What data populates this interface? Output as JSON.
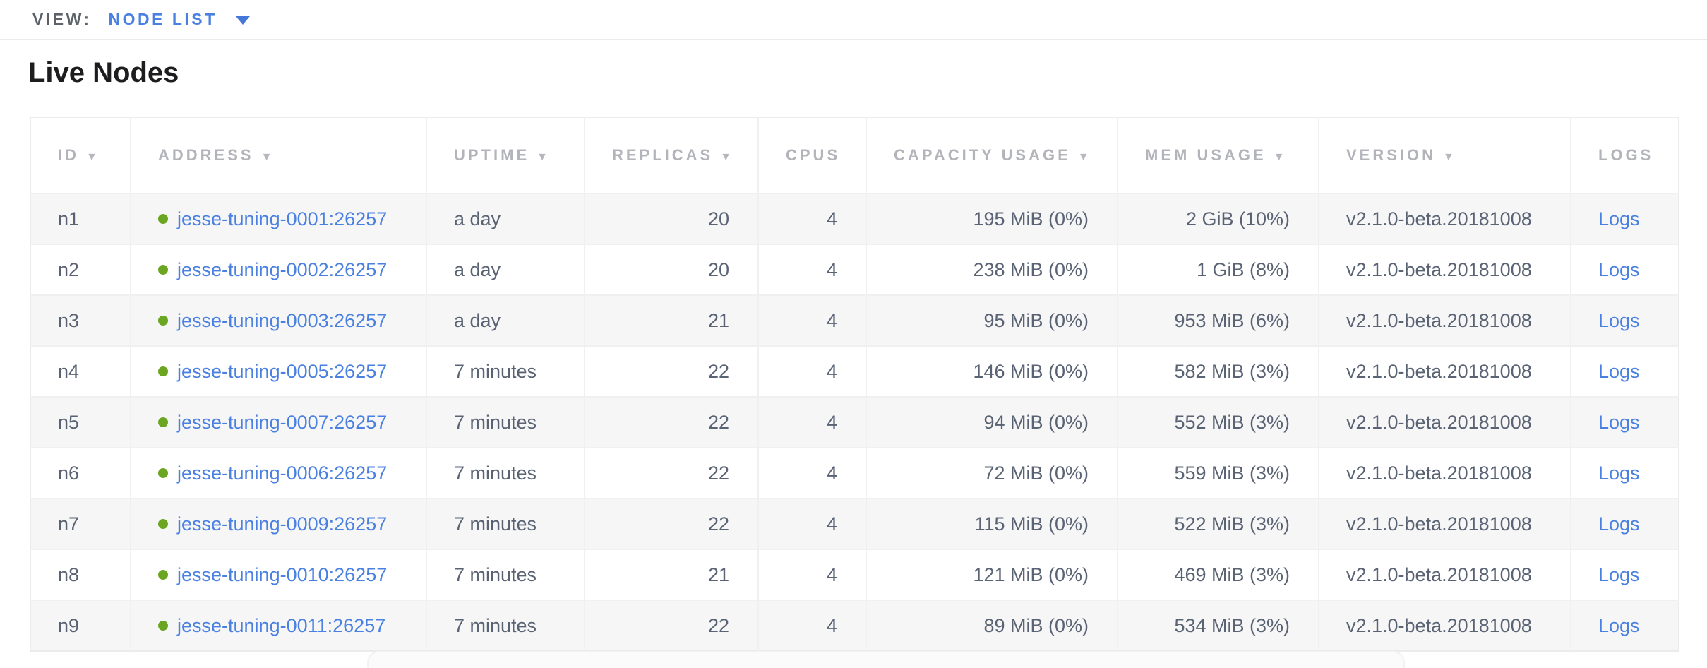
{
  "toolbar": {
    "view_label": "VIEW:",
    "view_value": "NODE LIST"
  },
  "page": {
    "title": "Live Nodes"
  },
  "colors": {
    "accent_blue": "#4a80e1",
    "live_status_green": "#6aa621",
    "header_gray": "#b3b4ba",
    "cell_text": "#5a6374",
    "row_stripe": "#f6f6f7"
  },
  "table": {
    "logs_label": "Logs",
    "columns": [
      {
        "label": "ID",
        "sortable": true
      },
      {
        "label": "ADDRESS",
        "sortable": true
      },
      {
        "label": "UPTIME",
        "sortable": true
      },
      {
        "label": "REPLICAS",
        "sortable": true
      },
      {
        "label": "CPUS",
        "sortable": false
      },
      {
        "label": "CAPACITY USAGE",
        "sortable": true
      },
      {
        "label": "MEM USAGE",
        "sortable": true
      },
      {
        "label": "VERSION",
        "sortable": true
      },
      {
        "label": "LOGS",
        "sortable": false
      }
    ],
    "rows": [
      {
        "id": "n1",
        "address": "jesse-tuning-0001:26257",
        "uptime": "a day",
        "replicas": "20",
        "cpus": "4",
        "capacity": "195 MiB (0%)",
        "mem": "2 GiB (10%)",
        "version": "v2.1.0-beta.20181008"
      },
      {
        "id": "n2",
        "address": "jesse-tuning-0002:26257",
        "uptime": "a day",
        "replicas": "20",
        "cpus": "4",
        "capacity": "238 MiB (0%)",
        "mem": "1 GiB (8%)",
        "version": "v2.1.0-beta.20181008"
      },
      {
        "id": "n3",
        "address": "jesse-tuning-0003:26257",
        "uptime": "a day",
        "replicas": "21",
        "cpus": "4",
        "capacity": "95 MiB (0%)",
        "mem": "953 MiB (6%)",
        "version": "v2.1.0-beta.20181008"
      },
      {
        "id": "n4",
        "address": "jesse-tuning-0005:26257",
        "uptime": "7 minutes",
        "replicas": "22",
        "cpus": "4",
        "capacity": "146 MiB (0%)",
        "mem": "582 MiB (3%)",
        "version": "v2.1.0-beta.20181008"
      },
      {
        "id": "n5",
        "address": "jesse-tuning-0007:26257",
        "uptime": "7 minutes",
        "replicas": "22",
        "cpus": "4",
        "capacity": "94 MiB (0%)",
        "mem": "552 MiB (3%)",
        "version": "v2.1.0-beta.20181008"
      },
      {
        "id": "n6",
        "address": "jesse-tuning-0006:26257",
        "uptime": "7 minutes",
        "replicas": "22",
        "cpus": "4",
        "capacity": "72 MiB (0%)",
        "mem": "559 MiB (3%)",
        "version": "v2.1.0-beta.20181008"
      },
      {
        "id": "n7",
        "address": "jesse-tuning-0009:26257",
        "uptime": "7 minutes",
        "replicas": "22",
        "cpus": "4",
        "capacity": "115 MiB (0%)",
        "mem": "522 MiB (3%)",
        "version": "v2.1.0-beta.20181008"
      },
      {
        "id": "n8",
        "address": "jesse-tuning-0010:26257",
        "uptime": "7 minutes",
        "replicas": "21",
        "cpus": "4",
        "capacity": "121 MiB (0%)",
        "mem": "469 MiB (3%)",
        "version": "v2.1.0-beta.20181008"
      },
      {
        "id": "n9",
        "address": "jesse-tuning-0011:26257",
        "uptime": "7 minutes",
        "replicas": "22",
        "cpus": "4",
        "capacity": "89 MiB (0%)",
        "mem": "534 MiB (3%)",
        "version": "v2.1.0-beta.20181008"
      }
    ]
  }
}
